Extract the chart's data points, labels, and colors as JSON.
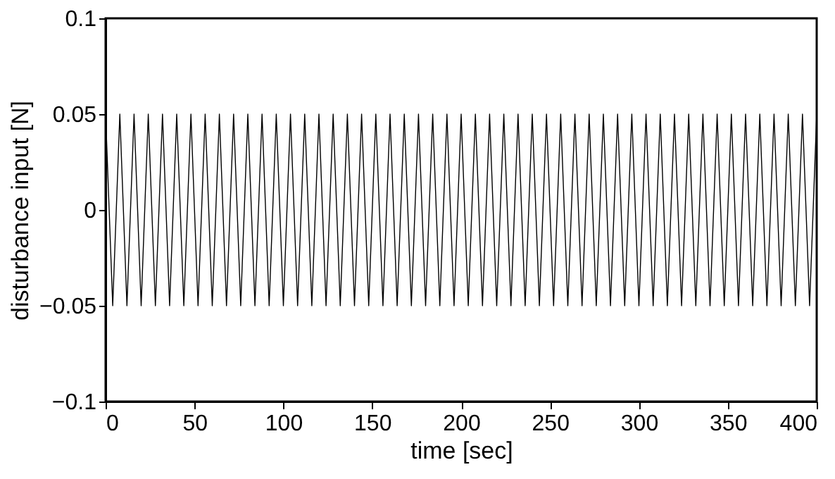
{
  "chart_data": {
    "type": "line",
    "xlabel": "time [sec]",
    "ylabel": "disturbance input [N]",
    "xlim": [
      0,
      400
    ],
    "xticks": [
      0,
      50,
      100,
      150,
      200,
      250,
      300,
      350,
      400
    ],
    "ylim": [
      -0.1,
      0.1
    ],
    "yticks": [
      -0.1,
      -0.05,
      0,
      0.05,
      0.1
    ],
    "grid": false,
    "line_style": "solid",
    "marker": "none",
    "series": [
      {
        "color": "#000000",
        "x": [
          0,
          4,
          8,
          12,
          16,
          20,
          24,
          28,
          32,
          36,
          40,
          44,
          48,
          52,
          56,
          60,
          64,
          68,
          72,
          76,
          80,
          84,
          88,
          92,
          96,
          100,
          104,
          108,
          112,
          116,
          120,
          124,
          128,
          132,
          136,
          140,
          144,
          148,
          152,
          156,
          160,
          164,
          168,
          172,
          176,
          180,
          184,
          188,
          192,
          196,
          200,
          204,
          208,
          212,
          216,
          220,
          224,
          228,
          232,
          236,
          240,
          244,
          248,
          252,
          256,
          260,
          264,
          268,
          272,
          276,
          280,
          284,
          288,
          292,
          296,
          300,
          304,
          308,
          312,
          316,
          320,
          324,
          328,
          332,
          336,
          340,
          344,
          348,
          352,
          356,
          360,
          364,
          368,
          372,
          376,
          380,
          384,
          388,
          392,
          396,
          400
        ],
        "values": [
          0.05,
          -0.05,
          0.05,
          -0.05,
          0.05,
          -0.05,
          0.05,
          -0.05,
          0.05,
          -0.05,
          0.05,
          -0.05,
          0.05,
          -0.05,
          0.05,
          -0.05,
          0.05,
          -0.05,
          0.05,
          -0.05,
          0.05,
          -0.05,
          0.05,
          -0.05,
          0.05,
          -0.05,
          0.05,
          -0.05,
          0.05,
          -0.05,
          0.05,
          -0.05,
          0.05,
          -0.05,
          0.05,
          -0.05,
          0.05,
          -0.05,
          0.05,
          -0.05,
          0.05,
          -0.05,
          0.05,
          -0.05,
          0.05,
          -0.05,
          0.05,
          -0.05,
          0.05,
          -0.05,
          0.05,
          -0.05,
          0.05,
          -0.05,
          0.05,
          -0.05,
          0.05,
          -0.05,
          0.05,
          -0.05,
          0.05,
          -0.05,
          0.05,
          -0.05,
          0.05,
          -0.05,
          0.05,
          -0.05,
          0.05,
          -0.05,
          0.05,
          -0.05,
          0.05,
          -0.05,
          0.05,
          -0.05,
          0.05,
          -0.05,
          0.05,
          -0.05,
          0.05,
          -0.05,
          0.05,
          -0.05,
          0.05,
          -0.05,
          0.05,
          -0.05,
          0.05,
          -0.05,
          0.05,
          -0.05,
          0.05,
          -0.05,
          0.05,
          -0.05,
          0.05,
          -0.05,
          0.05,
          -0.05,
          0.05
        ]
      }
    ]
  }
}
